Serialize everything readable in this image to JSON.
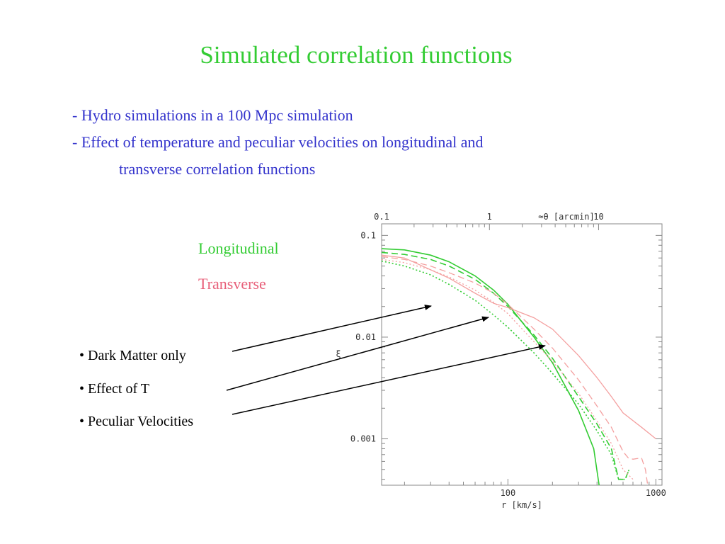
{
  "slide": {
    "title": "Simulated correlation functions",
    "bullets": [
      "- Hydro simulations in a 100 Mpc simulation",
      "- Effect of temperature and  peculiar velocities on longitudinal and",
      "transverse correlation functions"
    ],
    "legend": {
      "longitudinal": "Longitudinal",
      "transverse": "Transverse",
      "longitudinal_color": "#33cc33",
      "transverse_color": "#f4a0a0"
    },
    "cases": [
      "• Dark Matter only",
      "• Effect of T",
      "• Peculiar Velocities"
    ]
  },
  "chart_data": {
    "type": "line",
    "xscale": "log",
    "yscale": "log",
    "xlim": [
      14,
      1100
    ],
    "ylim": [
      0.00035,
      0.13
    ],
    "xlabel": "r [km/s]",
    "ylabel": "ξ",
    "toplabel": "≈θ [arcmin]",
    "x_ticklabels": [
      "100",
      "1000"
    ],
    "x_ticks": [
      100,
      1000
    ],
    "y_ticklabels": [
      "0.1",
      "0.01",
      "0.001"
    ],
    "y_ticks": [
      0.1,
      0.01,
      0.001
    ],
    "top_ticklabels": [
      "0.1",
      "1",
      "10"
    ],
    "top_ticks_at_r": [
      14,
      75,
      410
    ],
    "series": [
      {
        "name": "",
        "color": "#33cc33",
        "dash": "solid",
        "x": [
          14,
          20,
          30,
          40,
          60,
          80,
          100,
          150,
          200,
          300,
          380,
          420
        ],
        "y": [
          0.074,
          0.072,
          0.064,
          0.055,
          0.04,
          0.029,
          0.021,
          0.01,
          0.0056,
          0.0019,
          0.0008,
          0.0003
        ]
      },
      {
        "name": "",
        "color": "#33cc33",
        "dash": "long",
        "x": [
          14,
          20,
          30,
          40,
          60,
          80,
          100,
          150,
          200,
          300,
          400,
          500,
          560,
          620,
          660
        ],
        "y": [
          0.068,
          0.065,
          0.058,
          0.05,
          0.037,
          0.027,
          0.02,
          0.0105,
          0.0062,
          0.0026,
          0.0014,
          0.0008,
          0.0004,
          0.0004,
          0.0005
        ]
      },
      {
        "name": "",
        "color": "#33cc33",
        "dash": "dot",
        "x": [
          14,
          20,
          30,
          40,
          60,
          80,
          100,
          150,
          200,
          300,
          400,
          500,
          560,
          620,
          660
        ],
        "y": [
          0.056,
          0.05,
          0.041,
          0.033,
          0.023,
          0.0165,
          0.0125,
          0.007,
          0.0044,
          0.0022,
          0.0012,
          0.0007,
          0.0004,
          0.0004,
          0.0005
        ]
      },
      {
        "name": "",
        "color": "#f4a0a0",
        "dash": "solid",
        "x": [
          14,
          20,
          40,
          60,
          80,
          100,
          150,
          200,
          300,
          400,
          500,
          600,
          800,
          1000
        ],
        "y": [
          0.064,
          0.06,
          0.038,
          0.027,
          0.0215,
          0.0195,
          0.0155,
          0.012,
          0.0066,
          0.004,
          0.0026,
          0.0018,
          0.0013,
          0.001
        ]
      },
      {
        "name": "",
        "color": "#f4a0a0",
        "dash": "long",
        "x": [
          14,
          20,
          30,
          40,
          60,
          80,
          100,
          150,
          200,
          300,
          400,
          500,
          600,
          650,
          700,
          800,
          850,
          880
        ],
        "y": [
          0.062,
          0.058,
          0.05,
          0.043,
          0.034,
          0.027,
          0.021,
          0.012,
          0.0078,
          0.0038,
          0.0021,
          0.0013,
          0.00075,
          0.00065,
          0.00063,
          0.00065,
          0.0005,
          0.00035
        ]
      },
      {
        "name": "",
        "color": "#f4a0a0",
        "dash": "dot",
        "x": [
          14,
          20,
          30,
          40,
          60,
          80,
          100,
          150,
          200,
          300,
          400,
          500,
          600,
          700
        ],
        "y": [
          0.058,
          0.054,
          0.046,
          0.039,
          0.029,
          0.022,
          0.017,
          0.009,
          0.0058,
          0.0028,
          0.0015,
          0.0009,
          0.0005,
          0.0004
        ]
      }
    ]
  }
}
